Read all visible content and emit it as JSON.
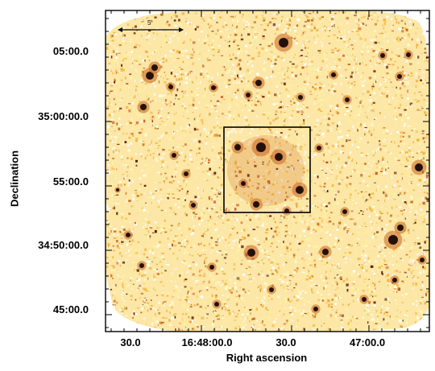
{
  "image": {
    "kind": "x-ray-sky-image",
    "colormap": [
      "#ffffff",
      "#fff3a0",
      "#f5b23c",
      "#c8641e",
      "#5a1a0a",
      "#140402"
    ],
    "frame_color": "#000000",
    "region_box": "black rectangle around central cluster"
  },
  "scale_bar": {
    "label": "5'"
  },
  "axes": {
    "ylabel": "Declination",
    "xlabel": "Right ascension",
    "y_ticks": [
      {
        "label": "05:00.0"
      },
      {
        "label": "35:00:00.0"
      },
      {
        "label": "55:00.0"
      },
      {
        "label": "34:50:00.0"
      },
      {
        "label": "45:00.0"
      }
    ],
    "x_ticks": [
      {
        "label": "30.0"
      },
      {
        "label": "16:48:00.0"
      },
      {
        "label": "30.0"
      },
      {
        "label": "47:00.0"
      }
    ]
  }
}
